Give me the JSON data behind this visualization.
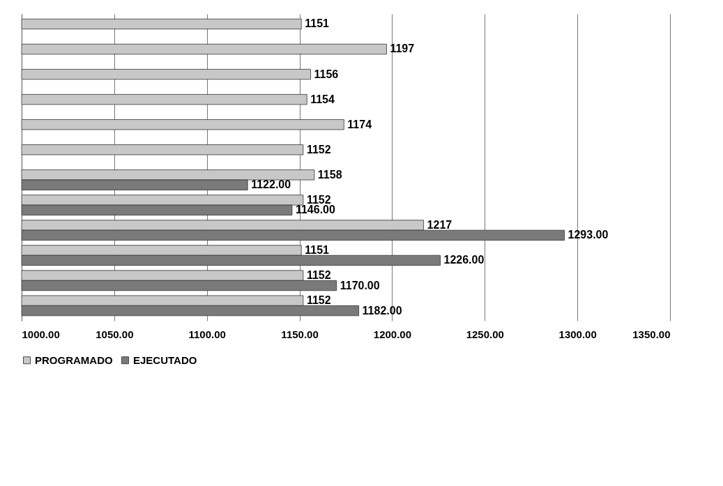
{
  "chart_data": {
    "type": "bar",
    "orientation": "horizontal",
    "categories": [
      null,
      null,
      null,
      null,
      null,
      null,
      null,
      null,
      null,
      null,
      null,
      null
    ],
    "series": [
      {
        "name": "PROGRAMADO",
        "color": "#c8c8c8",
        "values": [
          1151,
          1197,
          1156,
          1154,
          1174,
          1152,
          1158,
          1152,
          1217,
          1151,
          1152,
          1152
        ],
        "value_labels": [
          "1151",
          "1197",
          "1156",
          "1154",
          "1174",
          "1152",
          "1158",
          "1152",
          "1217",
          "1151",
          "1152",
          "1152"
        ]
      },
      {
        "name": "EJECUTADO",
        "color": "#7a7a7a",
        "values": [
          null,
          null,
          null,
          null,
          null,
          null,
          1122,
          1146,
          1293,
          1226,
          1170,
          1182
        ],
        "value_labels": [
          null,
          null,
          null,
          null,
          null,
          null,
          "1122.00",
          "1146.00",
          "1293.00",
          "1226.00",
          "1170.00",
          "1182.00"
        ]
      }
    ],
    "xlim": [
      1000,
      1350
    ],
    "xticks": [
      {
        "value": 1000,
        "label": "1000.00"
      },
      {
        "value": 1050,
        "label": "1050.00"
      },
      {
        "value": 1100,
        "label": "1100.00"
      },
      {
        "value": 1150,
        "label": "1150.00"
      },
      {
        "value": 1200,
        "label": "1200.00"
      },
      {
        "value": 1250,
        "label": "1250.00"
      },
      {
        "value": 1300,
        "label": "1300.00"
      },
      {
        "value": 1350,
        "label": "1350.00"
      }
    ],
    "grid": "x",
    "legend": "bottom"
  }
}
